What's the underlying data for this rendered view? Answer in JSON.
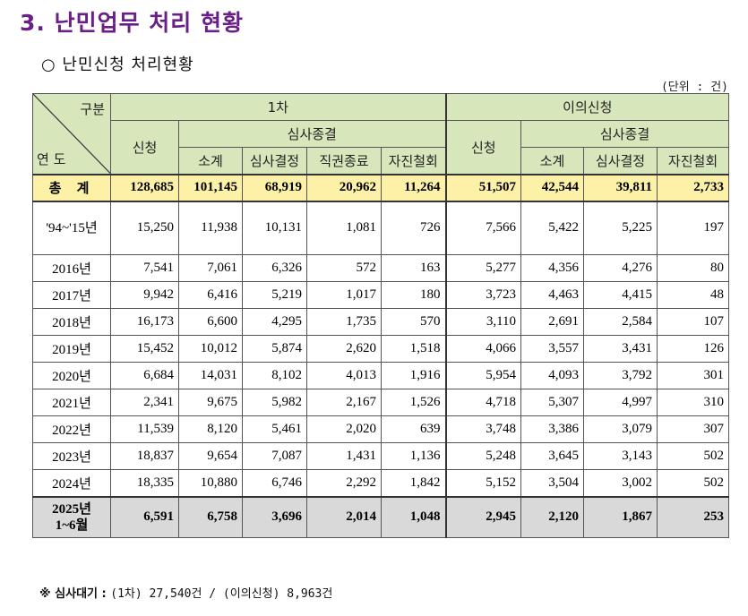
{
  "title": "3. 난민업무 처리 현황",
  "subtitle": "○ 난민신청 처리현황",
  "unit": "(단위 : 건)",
  "table": {
    "corner_top": "구분",
    "corner_bottom": "연 도",
    "group1": "1차",
    "group2": "이의신청",
    "apply": "신청",
    "review_end": "심사종결",
    "sub": [
      "소계",
      "심사결정",
      "직권종료",
      "자진철회"
    ],
    "sub2": [
      "소계",
      "심사결정",
      "자진철회"
    ],
    "total_label": "총 계",
    "total": [
      "128,685",
      "101,145",
      "68,919",
      "20,962",
      "11,264",
      "51,507",
      "42,544",
      "39,811",
      "2,733"
    ],
    "rows": [
      {
        "year": "'94~'15년",
        "values": [
          "15,250",
          "11,938",
          "10,131",
          "1,081",
          "726",
          "7,566",
          "5,422",
          "5,225",
          "197"
        ]
      },
      {
        "year": "2016년",
        "values": [
          "7,541",
          "7,061",
          "6,326",
          "572",
          "163",
          "5,277",
          "4,356",
          "4,276",
          "80"
        ]
      },
      {
        "year": "2017년",
        "values": [
          "9,942",
          "6,416",
          "5,219",
          "1,017",
          "180",
          "3,723",
          "4,463",
          "4,415",
          "48"
        ]
      },
      {
        "year": "2018년",
        "values": [
          "16,173",
          "6,600",
          "4,295",
          "1,735",
          "570",
          "3,110",
          "2,691",
          "2,584",
          "107"
        ]
      },
      {
        "year": "2019년",
        "values": [
          "15,452",
          "10,012",
          "5,874",
          "2,620",
          "1,518",
          "4,066",
          "3,557",
          "3,431",
          "126"
        ]
      },
      {
        "year": "2020년",
        "values": [
          "6,684",
          "14,031",
          "8,102",
          "4,013",
          "1,916",
          "5,954",
          "4,093",
          "3,792",
          "301"
        ]
      },
      {
        "year": "2021년",
        "values": [
          "2,341",
          "9,675",
          "5,982",
          "2,167",
          "1,526",
          "4,718",
          "5,307",
          "4,997",
          "310"
        ]
      },
      {
        "year": "2022년",
        "values": [
          "11,539",
          "8,120",
          "5,461",
          "2,020",
          "639",
          "3,748",
          "3,386",
          "3,079",
          "307"
        ]
      },
      {
        "year": "2023년",
        "values": [
          "18,837",
          "9,654",
          "7,087",
          "1,431",
          "1,136",
          "5,248",
          "3,645",
          "3,143",
          "502"
        ]
      },
      {
        "year": "2024년",
        "values": [
          "18,335",
          "10,880",
          "6,746",
          "2,292",
          "1,842",
          "5,152",
          "3,504",
          "3,002",
          "502"
        ]
      }
    ],
    "last": {
      "year_line1": "2025년",
      "year_line2": "1~6월",
      "values": [
        "6,591",
        "6,758",
        "3,696",
        "2,014",
        "1,048",
        "2,945",
        "2,120",
        "1,867",
        "253"
      ]
    }
  },
  "note_label": "※ 심사대기 :",
  "note_value": "(1차) 27,540건 / (이의신청) 8,963건"
}
